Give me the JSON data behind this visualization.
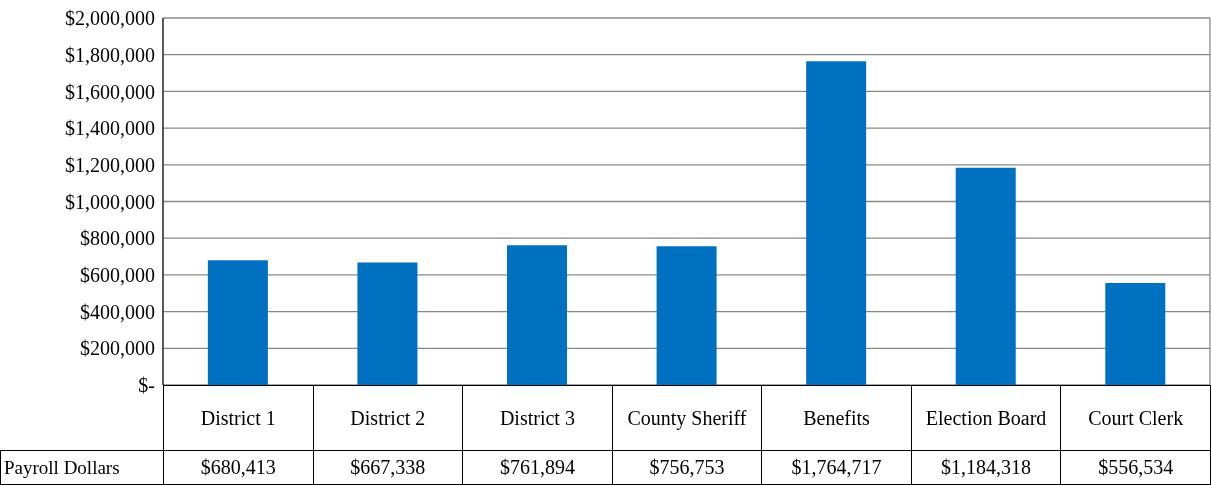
{
  "chart_data": {
    "type": "bar",
    "categories": [
      "District 1",
      "District 2",
      "District 3",
      "County Sheriff",
      "Benefits",
      "Election Board",
      "Court Clerk"
    ],
    "series": [
      {
        "name": "Payroll Dollars",
        "color": "#0070c0",
        "values": [
          680413,
          667338,
          761894,
          756753,
          1764717,
          1184318,
          556534
        ],
        "value_labels": [
          "$680,413",
          "$667,338",
          "$761,894",
          "$756,753",
          "$1,764,717",
          "$1,184,318",
          "$556,534"
        ]
      }
    ],
    "ylim": [
      0,
      2000000
    ],
    "yticks": [
      {
        "value": 0,
        "label": "$-"
      },
      {
        "value": 200000,
        "label": "$200,000"
      },
      {
        "value": 400000,
        "label": "$400,000"
      },
      {
        "value": 600000,
        "label": "$600,000"
      },
      {
        "value": 800000,
        "label": "$800,000"
      },
      {
        "value": 1000000,
        "label": "$1,000,000"
      },
      {
        "value": 1200000,
        "label": "$1,200,000"
      },
      {
        "value": 1400000,
        "label": "$1,400,000"
      },
      {
        "value": 1600000,
        "label": "$1,600,000"
      },
      {
        "value": 1800000,
        "label": "$1,800,000"
      },
      {
        "value": 2000000,
        "label": "$2,000,000"
      }
    ],
    "grid": "y"
  }
}
